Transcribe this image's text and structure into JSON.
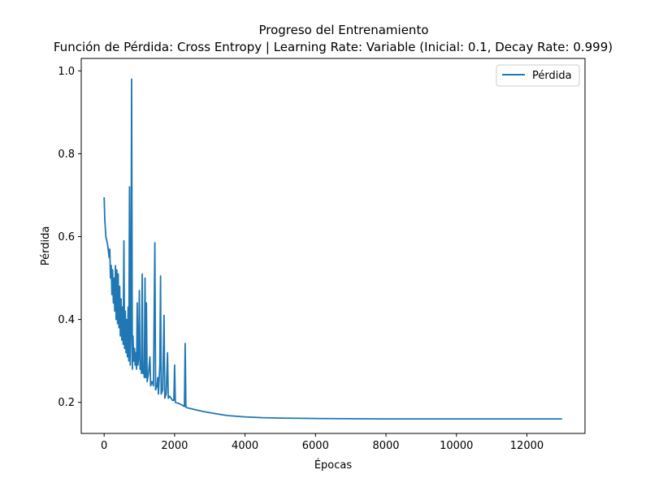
{
  "chart_data": {
    "type": "line",
    "title": "Progreso del Entrenamiento",
    "subtitle": "Función de Pérdida: Cross Entropy | Learning Rate: Variable (Inicial: 0.1, Decay Rate: 0.999)",
    "xlabel": "Épocas",
    "ylabel": "Pérdida",
    "xlim": [
      -650,
      13650
    ],
    "ylim": [
      0.125,
      1.03
    ],
    "xticks": [
      0,
      2000,
      4000,
      6000,
      8000,
      10000,
      12000
    ],
    "yticks": [
      0.2,
      0.4,
      0.6,
      0.8,
      1.0
    ],
    "xtick_labels": [
      "0",
      "2000",
      "4000",
      "6000",
      "8000",
      "10000",
      "12000"
    ],
    "ytick_labels": [
      "0.2",
      "0.4",
      "0.6",
      "0.8",
      "1.0"
    ],
    "grid": false,
    "legend": {
      "position": "top-right",
      "entries": [
        "Pérdida"
      ]
    },
    "series": [
      {
        "name": "Pérdida",
        "color": "#1f77b4",
        "points": [
          [
            0,
            0.695
          ],
          [
            20,
            0.64
          ],
          [
            50,
            0.6
          ],
          [
            100,
            0.58
          ],
          [
            140,
            0.55
          ],
          [
            160,
            0.57
          ],
          [
            180,
            0.5
          ],
          [
            200,
            0.53
          ],
          [
            220,
            0.46
          ],
          [
            240,
            0.52
          ],
          [
            260,
            0.44
          ],
          [
            280,
            0.5
          ],
          [
            300,
            0.42
          ],
          [
            320,
            0.53
          ],
          [
            340,
            0.4
          ],
          [
            360,
            0.52
          ],
          [
            380,
            0.39
          ],
          [
            400,
            0.51
          ],
          [
            420,
            0.38
          ],
          [
            440,
            0.48
          ],
          [
            460,
            0.36
          ],
          [
            480,
            0.45
          ],
          [
            500,
            0.35
          ],
          [
            520,
            0.43
          ],
          [
            540,
            0.34
          ],
          [
            560,
            0.59
          ],
          [
            580,
            0.33
          ],
          [
            600,
            0.42
          ],
          [
            620,
            0.32
          ],
          [
            640,
            0.4
          ],
          [
            660,
            0.31
          ],
          [
            680,
            0.43
          ],
          [
            700,
            0.3
          ],
          [
            720,
            0.72
          ],
          [
            740,
            0.29
          ],
          [
            760,
            0.37
          ],
          [
            780,
            0.98
          ],
          [
            800,
            0.28
          ],
          [
            820,
            0.36
          ],
          [
            840,
            0.3
          ],
          [
            860,
            0.33
          ],
          [
            880,
            0.29
          ],
          [
            900,
            0.32
          ],
          [
            920,
            0.28
          ],
          [
            940,
            0.44
          ],
          [
            960,
            0.29
          ],
          [
            980,
            0.31
          ],
          [
            1000,
            0.47
          ],
          [
            1020,
            0.28
          ],
          [
            1040,
            0.3
          ],
          [
            1060,
            0.27
          ],
          [
            1080,
            0.51
          ],
          [
            1100,
            0.27
          ],
          [
            1120,
            0.29
          ],
          [
            1140,
            0.26
          ],
          [
            1160,
            0.5
          ],
          [
            1180,
            0.26
          ],
          [
            1200,
            0.44
          ],
          [
            1220,
            0.25
          ],
          [
            1260,
            0.27
          ],
          [
            1300,
            0.31
          ],
          [
            1320,
            0.24
          ],
          [
            1360,
            0.25
          ],
          [
            1400,
            0.24
          ],
          [
            1440,
            0.585
          ],
          [
            1460,
            0.23
          ],
          [
            1500,
            0.24
          ],
          [
            1520,
            0.26
          ],
          [
            1540,
            0.22
          ],
          [
            1580,
            0.29
          ],
          [
            1600,
            0.505
          ],
          [
            1620,
            0.22
          ],
          [
            1660,
            0.23
          ],
          [
            1700,
            0.41
          ],
          [
            1720,
            0.21
          ],
          [
            1760,
            0.22
          ],
          [
            1800,
            0.32
          ],
          [
            1820,
            0.21
          ],
          [
            1860,
            0.215
          ],
          [
            1900,
            0.21
          ],
          [
            1940,
            0.205
          ],
          [
            1980,
            0.205
          ],
          [
            2000,
            0.29
          ],
          [
            2020,
            0.2
          ],
          [
            2100,
            0.198
          ],
          [
            2200,
            0.194
          ],
          [
            2280,
            0.19
          ],
          [
            2300,
            0.342
          ],
          [
            2320,
            0.188
          ],
          [
            2400,
            0.186
          ],
          [
            2600,
            0.182
          ],
          [
            2800,
            0.178
          ],
          [
            3000,
            0.175
          ],
          [
            3500,
            0.168
          ],
          [
            4000,
            0.165
          ],
          [
            4500,
            0.163
          ],
          [
            5000,
            0.162
          ],
          [
            6000,
            0.161
          ],
          [
            7000,
            0.1605
          ],
          [
            8000,
            0.16
          ],
          [
            9000,
            0.16
          ],
          [
            10000,
            0.16
          ],
          [
            11000,
            0.16
          ],
          [
            12000,
            0.16
          ],
          [
            13000,
            0.16
          ]
        ]
      }
    ]
  }
}
